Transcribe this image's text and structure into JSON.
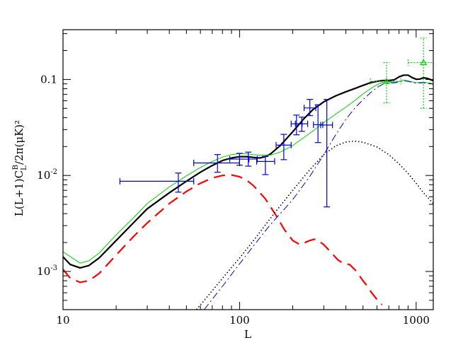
{
  "chart_data": {
    "type": "line",
    "xscale": "log",
    "yscale": "log",
    "xlim": [
      10,
      1250
    ],
    "ylim": [
      0.0004,
      0.33
    ],
    "xlabel": "L",
    "ylabel": "L(L+1)C_L^B/2π(μK)²",
    "x_ticks": [
      {
        "value": 10,
        "label": "10"
      },
      {
        "value": 100,
        "label": "100"
      },
      {
        "value": 1000,
        "label": "1000"
      }
    ],
    "y_ticks": [
      {
        "value": 0.001,
        "label": "10",
        "exp": "-3"
      },
      {
        "value": 0.01,
        "label": "10",
        "exp": "-2"
      },
      {
        "value": 0.1,
        "label": "0.1",
        "exp": ""
      }
    ],
    "grid": false,
    "legend": "none",
    "series": [
      {
        "style": "solid-thick",
        "color": "#000000",
        "points": [
          [
            10,
            0.00142
          ],
          [
            11,
            0.00118
          ],
          [
            12.5,
            0.00109
          ],
          [
            14,
            0.00115
          ],
          [
            16,
            0.00138
          ],
          [
            20,
            0.0021
          ],
          [
            25,
            0.0032
          ],
          [
            30,
            0.0045
          ],
          [
            40,
            0.0066
          ],
          [
            50,
            0.0087
          ],
          [
            60,
            0.0108
          ],
          [
            70,
            0.0127
          ],
          [
            80,
            0.0143
          ],
          [
            90,
            0.0152
          ],
          [
            100,
            0.0157
          ],
          [
            110,
            0.0157
          ],
          [
            120,
            0.0154
          ],
          [
            130,
            0.0152
          ],
          [
            140,
            0.0157
          ],
          [
            150,
            0.0168
          ],
          [
            170,
            0.0205
          ],
          [
            200,
            0.0285
          ],
          [
            230,
            0.0385
          ],
          [
            260,
            0.0485
          ],
          [
            300,
            0.0585
          ],
          [
            350,
            0.0675
          ],
          [
            400,
            0.0745
          ],
          [
            450,
            0.0805
          ],
          [
            500,
            0.0868
          ],
          [
            550,
            0.0925
          ],
          [
            600,
            0.0955
          ],
          [
            650,
            0.0975
          ],
          [
            700,
            0.0975
          ],
          [
            750,
            0.099
          ],
          [
            800,
            0.1065
          ],
          [
            850,
            0.111
          ],
          [
            900,
            0.111
          ],
          [
            950,
            0.1045
          ],
          [
            1000,
            0.1005
          ],
          [
            1050,
            0.101
          ],
          [
            1100,
            0.104
          ],
          [
            1150,
            0.103
          ],
          [
            1200,
            0.1
          ],
          [
            1250,
            0.097
          ]
        ]
      },
      {
        "style": "long-dash",
        "color": "#ff0000",
        "points": [
          [
            10,
            0.00105
          ],
          [
            11,
            0.00085
          ],
          [
            12.5,
            0.00077
          ],
          [
            14,
            0.0008
          ],
          [
            16,
            0.00095
          ],
          [
            20,
            0.00148
          ],
          [
            25,
            0.0023
          ],
          [
            30,
            0.0032
          ],
          [
            40,
            0.0051
          ],
          [
            50,
            0.0068
          ],
          [
            60,
            0.0083
          ],
          [
            70,
            0.0094
          ],
          [
            80,
            0.01
          ],
          [
            90,
            0.0101
          ],
          [
            100,
            0.0097
          ],
          [
            110,
            0.0089
          ],
          [
            120,
            0.0078
          ],
          [
            140,
            0.0057
          ],
          [
            160,
            0.0039
          ],
          [
            180,
            0.0027
          ],
          [
            200,
            0.0021
          ],
          [
            220,
            0.0019
          ],
          [
            250,
            0.0021
          ],
          [
            270,
            0.00218
          ],
          [
            300,
            0.0019
          ],
          [
            330,
            0.00158
          ],
          [
            360,
            0.00132
          ],
          [
            390,
            0.0012
          ],
          [
            420,
            0.00118
          ],
          [
            460,
            0.001
          ],
          [
            500,
            0.0008
          ],
          [
            530,
            0.0007
          ],
          [
            560,
            0.0006
          ],
          [
            600,
            0.00051
          ],
          [
            640,
            0.00045
          ]
        ]
      },
      {
        "style": "dotted",
        "color": "#000000",
        "points": [
          [
            57,
            0.0004
          ],
          [
            70,
            0.00063
          ],
          [
            90,
            0.0011
          ],
          [
            100,
            0.00138
          ],
          [
            120,
            0.0021
          ],
          [
            150,
            0.0036
          ],
          [
            180,
            0.0055
          ],
          [
            200,
            0.007
          ],
          [
            250,
            0.0115
          ],
          [
            300,
            0.0165
          ],
          [
            350,
            0.0203
          ],
          [
            400,
            0.0223
          ],
          [
            450,
            0.0228
          ],
          [
            500,
            0.0222
          ],
          [
            600,
            0.0198
          ],
          [
            700,
            0.0165
          ],
          [
            800,
            0.0132
          ],
          [
            900,
            0.0105
          ],
          [
            1000,
            0.0083
          ],
          [
            1100,
            0.0066
          ],
          [
            1250,
            0.0051
          ]
        ]
      },
      {
        "style": "solid-thin",
        "color": "#00cc00",
        "points": [
          [
            10,
            0.0016
          ],
          [
            12.5,
            0.00122
          ],
          [
            14,
            0.00129
          ],
          [
            16,
            0.00155
          ],
          [
            20,
            0.0024
          ],
          [
            25,
            0.0036
          ],
          [
            30,
            0.0051
          ],
          [
            40,
            0.0076
          ],
          [
            50,
            0.0099
          ],
          [
            60,
            0.0121
          ],
          [
            70,
            0.014
          ],
          [
            80,
            0.0155
          ],
          [
            90,
            0.0165
          ],
          [
            100,
            0.0169
          ],
          [
            110,
            0.0168
          ],
          [
            120,
            0.0165
          ],
          [
            130,
            0.0162
          ],
          [
            150,
            0.0163
          ],
          [
            170,
            0.0175
          ],
          [
            200,
            0.0205
          ],
          [
            250,
            0.0275
          ],
          [
            300,
            0.0355
          ],
          [
            350,
            0.0435
          ],
          [
            400,
            0.0515
          ],
          [
            450,
            0.0605
          ],
          [
            500,
            0.0705
          ],
          [
            550,
            0.08
          ],
          [
            600,
            0.088
          ],
          [
            650,
            0.0935
          ],
          [
            700,
            0.0945
          ],
          [
            750,
            0.0935
          ],
          [
            800,
            0.0955
          ],
          [
            850,
            0.0985
          ],
          [
            900,
            0.0965
          ],
          [
            1000,
            0.0925
          ],
          [
            1100,
            0.0935
          ],
          [
            1200,
            0.0915
          ],
          [
            1250,
            0.09
          ]
        ]
      },
      {
        "style": "dash-dot",
        "color": "#0000cc",
        "points": [
          [
            63,
            0.0004
          ],
          [
            80,
            0.0007
          ],
          [
            100,
            0.0012
          ],
          [
            120,
            0.00185
          ],
          [
            150,
            0.0031
          ],
          [
            180,
            0.0045
          ],
          [
            200,
            0.0056
          ],
          [
            250,
            0.0098
          ],
          [
            300,
            0.0165
          ],
          [
            350,
            0.0265
          ],
          [
            400,
            0.0385
          ],
          [
            450,
            0.0505
          ],
          [
            500,
            0.0615
          ],
          [
            550,
            0.0725
          ],
          [
            600,
            0.0825
          ],
          [
            650,
            0.0895
          ],
          [
            700,
            0.0925
          ],
          [
            750,
            0.092
          ],
          [
            800,
            0.094
          ],
          [
            850,
            0.097
          ],
          [
            900,
            0.0955
          ],
          [
            1000,
            0.0915
          ],
          [
            1100,
            0.0925
          ],
          [
            1250,
            0.089
          ]
        ]
      }
    ],
    "data_points": [
      {
        "x": 45,
        "y": 0.0087,
        "xerr": [
          21,
          55
        ],
        "yerr": [
          0.0067,
          0.0106
        ],
        "color": "#0000cc"
      },
      {
        "x": 75,
        "y": 0.0135,
        "xerr": [
          55,
          100
        ],
        "yerr": [
          0.0108,
          0.0165
        ],
        "color": "#0000cc"
      },
      {
        "x": 100,
        "y": 0.0148,
        "xerr": [
          88,
          113
        ],
        "yerr": [
          0.0128,
          0.017
        ],
        "color": "#0000cc"
      },
      {
        "x": 112,
        "y": 0.0148,
        "xerr": [
          100,
          126
        ],
        "yerr": [
          0.0125,
          0.0175
        ],
        "color": "#0000cc"
      },
      {
        "x": 140,
        "y": 0.014,
        "xerr": [
          125,
          158
        ],
        "yerr": [
          0.0102,
          0.0158
        ],
        "color": "#0000cc"
      },
      {
        "x": 178,
        "y": 0.0207,
        "xerr": [
          161,
          196
        ],
        "yerr": [
          0.0146,
          0.0268
        ],
        "color": "#0000cc"
      },
      {
        "x": 210,
        "y": 0.0345,
        "xerr": [
          196,
          226
        ],
        "yerr": [
          0.0265,
          0.0425
        ],
        "color": "#0000cc"
      },
      {
        "x": 225,
        "y": 0.0345,
        "xerr": [
          207,
          243
        ],
        "yerr": [
          0.0288,
          0.0405
        ],
        "color": "#0000cc"
      },
      {
        "x": 250,
        "y": 0.0505,
        "xerr": [
          232,
          270
        ],
        "yerr": [
          0.042,
          0.062
        ],
        "color": "#0000cc"
      },
      {
        "x": 278,
        "y": 0.0338,
        "xerr": [
          262,
          296
        ],
        "yerr": [
          0.022,
          0.0545
        ],
        "color": "#0000cc"
      },
      {
        "x": 312,
        "y": 0.0335,
        "xerr": [
          288,
          336
        ],
        "yerr": [
          0.0047,
          0.062
        ],
        "color": "#0000cc"
      },
      {
        "x": 680,
        "y": 0.0955,
        "xerr": [
          550,
          820
        ],
        "yerr": [
          0.057,
          0.15
        ],
        "color": "#00cc00"
      },
      {
        "x": 1100,
        "y": 0.15,
        "xerr": [
          900,
          1300
        ],
        "yerr": [
          0.05,
          0.27
        ],
        "color": "#00cc00"
      }
    ]
  }
}
